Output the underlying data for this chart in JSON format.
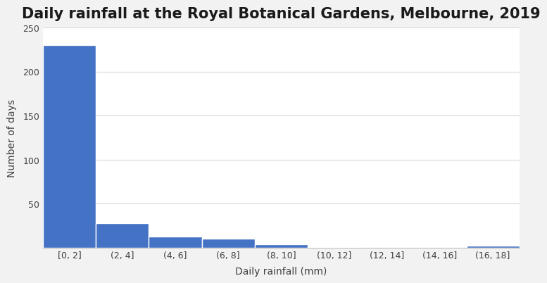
{
  "title": "Daily rainfall at the Royal Botanical Gardens, Melbourne, 2019",
  "xlabel": "Daily rainfall (mm)",
  "ylabel": "Number of days",
  "bar_color": "#4472C4",
  "background_color": "#f2f2f2",
  "plot_bg_color": "#ffffff",
  "bin_edges": [
    0,
    2,
    4,
    6,
    8,
    10,
    12,
    14,
    16,
    18
  ],
  "counts": [
    230,
    28,
    13,
    10,
    4,
    1,
    0,
    0,
    2
  ],
  "tick_labels": [
    "[0, 2]",
    "(2, 4]",
    "(4, 6]",
    "(6, 8]",
    "(8, 10]",
    "(10, 12]",
    "(12, 14]",
    "(14, 16]",
    "(16, 18]"
  ],
  "ylim": [
    0,
    250
  ],
  "yticks": [
    50,
    100,
    150,
    200,
    250
  ],
  "title_fontsize": 15,
  "axis_label_fontsize": 10,
  "tick_fontsize": 9,
  "grid_color": "#d9d9d9",
  "edge_color": "#ffffff"
}
